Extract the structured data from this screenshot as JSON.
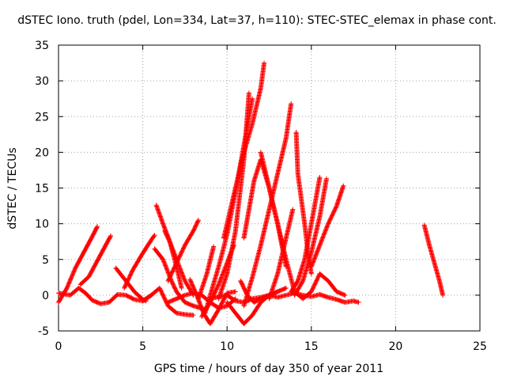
{
  "chart_data": {
    "type": "scatter",
    "title": "dSTEC Iono. truth (pdel, Lon=334, Lat=37, h=110): STEC-STEC_elemax in phase cont.",
    "xlabel": "GPS time / hours of day 350 of year 2011",
    "ylabel": "dSTEC  / TECUs",
    "xlim": [
      0,
      25
    ],
    "ylim": [
      -5,
      35
    ],
    "x_ticks": [
      0,
      5,
      10,
      15,
      20,
      25
    ],
    "y_ticks": [
      -5,
      0,
      5,
      10,
      15,
      20,
      25,
      30,
      35
    ],
    "grid": true,
    "marker": "plus",
    "color": "#ff0000",
    "series": [
      {
        "x": [
          0.0,
          0.5,
          1.0,
          1.5,
          2.0,
          2.3
        ],
        "y": [
          -1.0,
          1.0,
          3.8,
          6.0,
          8.2,
          9.6
        ]
      },
      {
        "x": [
          0.0,
          0.7,
          1.2,
          1.6,
          2.0,
          2.5,
          3.0,
          3.5,
          4.0,
          4.5,
          5.0,
          5.5
        ],
        "y": [
          0.3,
          0.0,
          1.0,
          0.3,
          -0.7,
          -1.2,
          -1.0,
          0.1,
          0.0,
          -0.6,
          -0.8,
          0.0
        ]
      },
      {
        "x": [
          1.3,
          1.8,
          2.3,
          2.8,
          3.1
        ],
        "y": [
          1.5,
          2.6,
          4.8,
          7.0,
          8.3
        ]
      },
      {
        "x": [
          3.4,
          4.0,
          4.5,
          5.0,
          5.2
        ],
        "y": [
          3.8,
          2.0,
          0.5,
          -0.6,
          -0.8
        ]
      },
      {
        "x": [
          3.9,
          4.4,
          4.9,
          5.3,
          5.7
        ],
        "y": [
          1.0,
          3.5,
          5.5,
          7.0,
          8.4
        ]
      },
      {
        "x": [
          5.0,
          5.5,
          6.0,
          6.5,
          7.0,
          7.5,
          8.0
        ],
        "y": [
          -0.8,
          0.0,
          1.0,
          -1.5,
          -2.5,
          -2.7,
          -2.8
        ]
      },
      {
        "x": [
          5.8,
          6.2,
          6.6,
          7.0,
          7.5,
          8.0
        ],
        "y": [
          12.6,
          10.0,
          7.5,
          5.0,
          2.0,
          0.0
        ]
      },
      {
        "x": [
          5.7,
          6.2,
          6.7,
          7.0,
          7.5,
          8.0,
          8.7
        ],
        "y": [
          6.5,
          5.0,
          2.0,
          0.5,
          -1.0,
          -1.5,
          -2.0
        ]
      },
      {
        "x": [
          6.3,
          6.6,
          7.0,
          7.3
        ],
        "y": [
          9.0,
          7.5,
          4.0,
          1.0
        ]
      },
      {
        "x": [
          6.5,
          7.0,
          7.5,
          8.0,
          8.3
        ],
        "y": [
          2.0,
          4.5,
          7.0,
          9.0,
          10.5
        ]
      },
      {
        "x": [
          6.5,
          7.0,
          7.5,
          8.0,
          8.5,
          9.0,
          9.5,
          10.0,
          10.5
        ],
        "y": [
          -1.0,
          -0.5,
          0.0,
          0.3,
          0.0,
          -1.0,
          -1.8,
          -1.5,
          -0.5
        ]
      },
      {
        "x": [
          7.8,
          8.2,
          8.6,
          9.0,
          9.5,
          10.0,
          10.5
        ],
        "y": [
          2.2,
          0.0,
          -2.5,
          -4.0,
          -2.0,
          0.3,
          0.5
        ]
      },
      {
        "x": [
          8.3,
          8.8,
          9.2
        ],
        "y": [
          -0.5,
          3.0,
          6.8
        ]
      },
      {
        "x": [
          8.5,
          9.0,
          9.5,
          10.0,
          10.4
        ],
        "y": [
          -3.0,
          -1.0,
          1.5,
          4.5,
          7.0
        ]
      },
      {
        "x": [
          8.7,
          9.0,
          9.5,
          10.0,
          10.5,
          11.0,
          11.5
        ],
        "y": [
          -2.5,
          0.0,
          4.0,
          8.5,
          14.5,
          21.0,
          27.5
        ]
      },
      {
        "x": [
          9.5,
          10.0,
          10.5,
          11.0,
          11.3
        ],
        "y": [
          -0.5,
          3.0,
          9.0,
          19.0,
          28.3
        ]
      },
      {
        "x": [
          9.8,
          10.2,
          10.6,
          11.0,
          11.5,
          12.0,
          12.2
        ],
        "y": [
          8.0,
          12.0,
          16.0,
          20.0,
          24.0,
          29.0,
          32.5
        ]
      },
      {
        "x": [
          10.0,
          10.5,
          11.0,
          11.5,
          12.0,
          12.5,
          13.0
        ],
        "y": [
          -1.0,
          -2.5,
          -4.0,
          -2.8,
          -1.0,
          0.0,
          0.5
        ]
      },
      {
        "x": [
          9.0,
          9.5,
          10.0,
          10.5,
          11.0,
          11.5,
          12.0,
          12.5,
          13.0,
          13.5,
          14.0,
          14.5,
          15.0,
          15.5,
          16.0,
          16.5,
          17.0,
          17.5,
          17.8
        ],
        "y": [
          -0.5,
          -0.2,
          0.0,
          -0.8,
          -1.0,
          -0.5,
          -0.3,
          0.0,
          -0.3,
          0.0,
          0.3,
          0.0,
          -0.2,
          0.1,
          -0.3,
          -0.6,
          -1.0,
          -0.8,
          -1.0
        ]
      },
      {
        "x": [
          10.8,
          11.2,
          11.6,
          12.0,
          12.5,
          13.0,
          13.5
        ],
        "y": [
          2.0,
          0.0,
          -1.0,
          -0.5,
          0.0,
          0.5,
          1.0
        ]
      },
      {
        "x": [
          11.0,
          11.3,
          11.6,
          12.0,
          12.5,
          13.0,
          13.5
        ],
        "y": [
          8.0,
          12.0,
          16.0,
          19.0,
          15.0,
          10.0,
          4.0
        ]
      },
      {
        "x": [
          11.0,
          11.5,
          12.0,
          12.5,
          13.0,
          13.5,
          13.8
        ],
        "y": [
          -1.5,
          2.5,
          7.0,
          12.0,
          17.0,
          22.0,
          26.8
        ]
      },
      {
        "x": [
          12.0,
          12.5,
          13.0,
          13.5,
          14.0,
          14.5,
          15.0,
          15.5,
          16.0,
          16.5,
          17.0
        ],
        "y": [
          20.0,
          15.0,
          10.0,
          5.0,
          0.5,
          -0.5,
          0.5,
          3.0,
          2.0,
          0.5,
          0.0
        ]
      },
      {
        "x": [
          12.5,
          13.0,
          13.5,
          13.9
        ],
        "y": [
          -0.5,
          3.0,
          8.0,
          12.0
        ]
      },
      {
        "x": [
          14.1,
          14.2,
          14.4,
          14.6,
          14.8,
          15.0
        ],
        "y": [
          22.8,
          17.0,
          13.5,
          10.0,
          6.0,
          3.0
        ]
      },
      {
        "x": [
          13.8,
          14.2,
          14.6,
          15.0,
          15.5
        ],
        "y": [
          0.5,
          2.0,
          5.0,
          10.0,
          16.5
        ]
      },
      {
        "x": [
          14.0,
          14.5,
          15.0,
          15.5,
          15.9
        ],
        "y": [
          0.0,
          2.0,
          6.0,
          11.0,
          16.3
        ]
      },
      {
        "x": [
          15.0,
          15.5,
          16.0,
          16.5,
          16.9
        ],
        "y": [
          4.0,
          7.0,
          10.0,
          12.5,
          15.3
        ]
      },
      {
        "x": [
          21.7,
          22.0,
          22.3,
          22.6,
          22.8
        ],
        "y": [
          9.8,
          7.0,
          4.5,
          2.0,
          0.0
        ]
      }
    ]
  }
}
